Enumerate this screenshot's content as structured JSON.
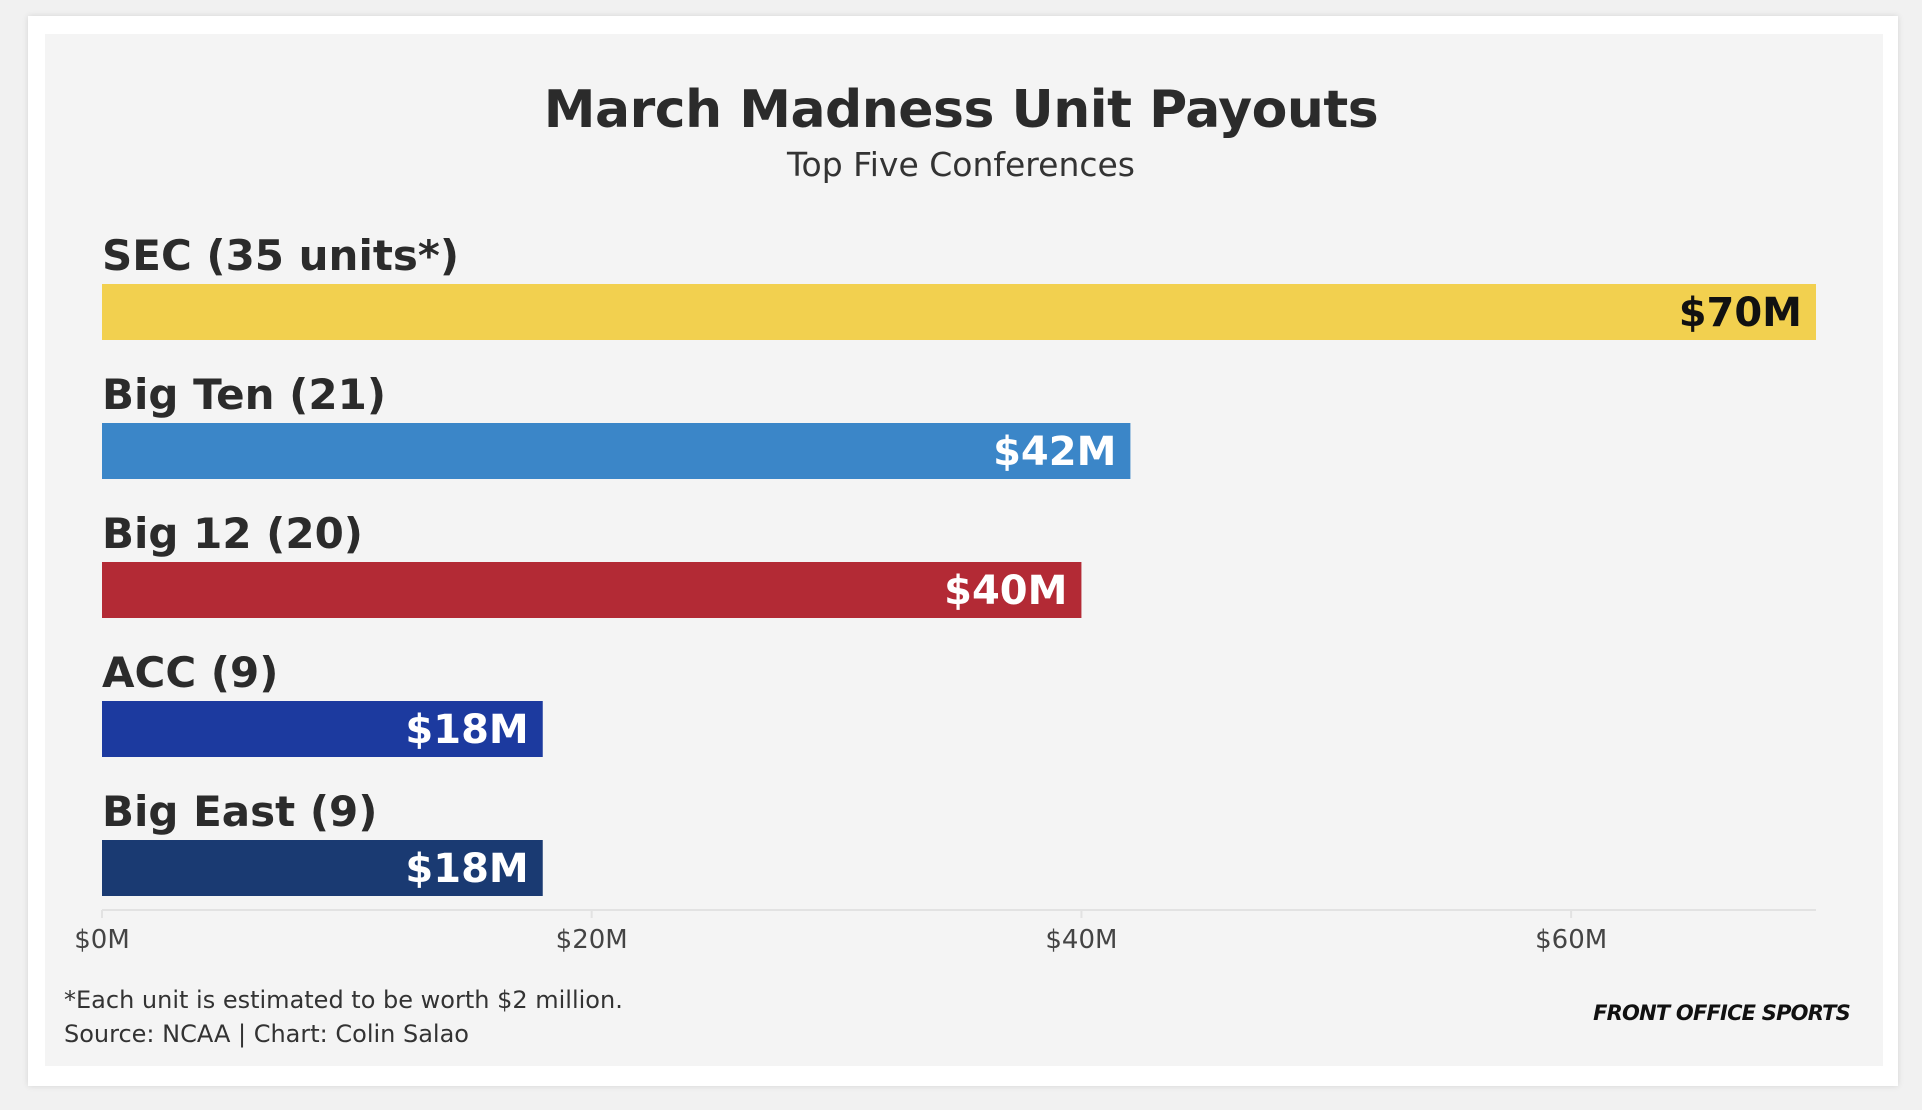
{
  "chart_data": {
    "type": "bar",
    "orientation": "horizontal",
    "title": "March Madness Unit Payouts",
    "subtitle": "Top Five Conferences",
    "categories": [
      "SEC (35 units*)",
      "Big Ten (21)",
      "Big 12 (20)",
      "ACC (9)",
      "Big East (9)"
    ],
    "values": [
      70,
      42,
      40,
      18,
      18
    ],
    "value_labels": [
      "$70M",
      "$42M",
      "$40M",
      "$18M",
      "$18M"
    ],
    "bar_colors": [
      "#f2d04f",
      "#3b86c8",
      "#b32a35",
      "#1c3a9f",
      "#1a3a72"
    ],
    "label_colors": [
      "#111111",
      "#ffffff",
      "#ffffff",
      "#ffffff",
      "#ffffff"
    ],
    "xlim": [
      0,
      70
    ],
    "xticks": [
      0,
      20,
      40,
      60
    ],
    "xtick_labels": [
      "$0M",
      "$20M",
      "$40M",
      "$60M"
    ],
    "xlabel": "",
    "ylabel": "",
    "grid": false
  },
  "footnotes": {
    "note": "*Each unit is estimated to be worth $2 million.",
    "source": "Source: NCAA | Chart: Colin Salao"
  },
  "brand": {
    "logo_text": "FRONT OFFICE SPORTS"
  }
}
